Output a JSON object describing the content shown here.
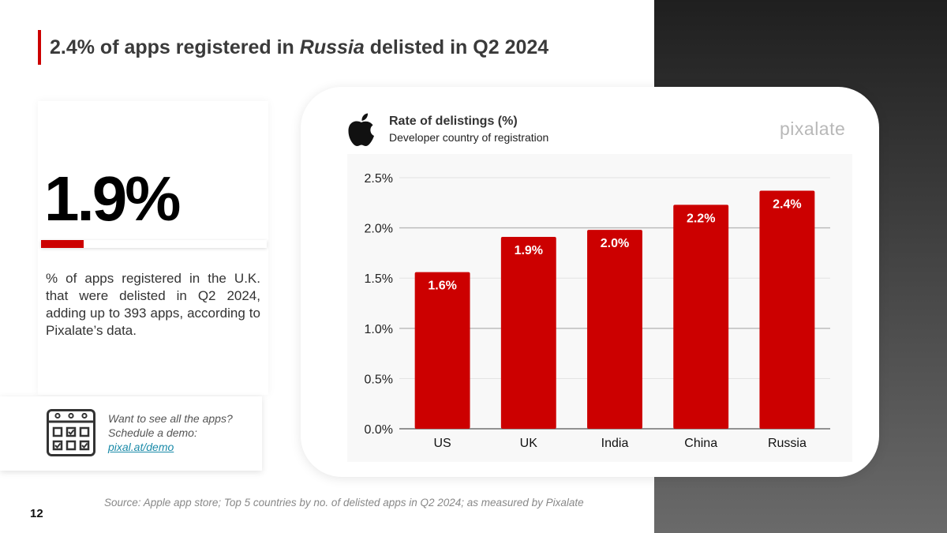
{
  "header": {
    "title_before": "2.4% of apps registered in ",
    "title_italic": "Russia",
    "title_after": " delisted in Q2 2024"
  },
  "stat": {
    "value": "1.9%",
    "bar_fraction": 0.019,
    "description": "% of apps registered in the U.K. that were delisted in Q2 2024, adding up to 393 apps, according to Pixalate’s data."
  },
  "demo": {
    "text": "Want to see all the apps? Schedule a demo: ",
    "link_text": "pixal.at/demo"
  },
  "brand": "pixalate",
  "chart_data": {
    "type": "bar",
    "title": "Rate of delistings (%)",
    "subtitle": "Developer country of registration",
    "categories": [
      "US",
      "UK",
      "India",
      "China",
      "Russia"
    ],
    "values": [
      1.56,
      1.91,
      1.98,
      2.23,
      2.37
    ],
    "data_labels": [
      "1.6%",
      "1.9%",
      "2.0%",
      "2.2%",
      "2.4%"
    ],
    "y_ticks": [
      0,
      0.5,
      1.0,
      1.5,
      2.0,
      2.5
    ],
    "y_tick_labels": [
      "0.0%",
      "0.5%",
      "1.0%",
      "1.5%",
      "2.0%",
      "2.5%"
    ],
    "ylim": [
      0,
      2.5
    ],
    "bar_color": "#cc0000",
    "grid": true
  },
  "footer": {
    "source": "Source: Apple app store; Top 5 countries by no. of delisted apps in Q2 2024; as measured by Pixalate",
    "page_number": "12"
  },
  "colors": {
    "accent": "#cc0000",
    "link": "#1a8aa8"
  }
}
